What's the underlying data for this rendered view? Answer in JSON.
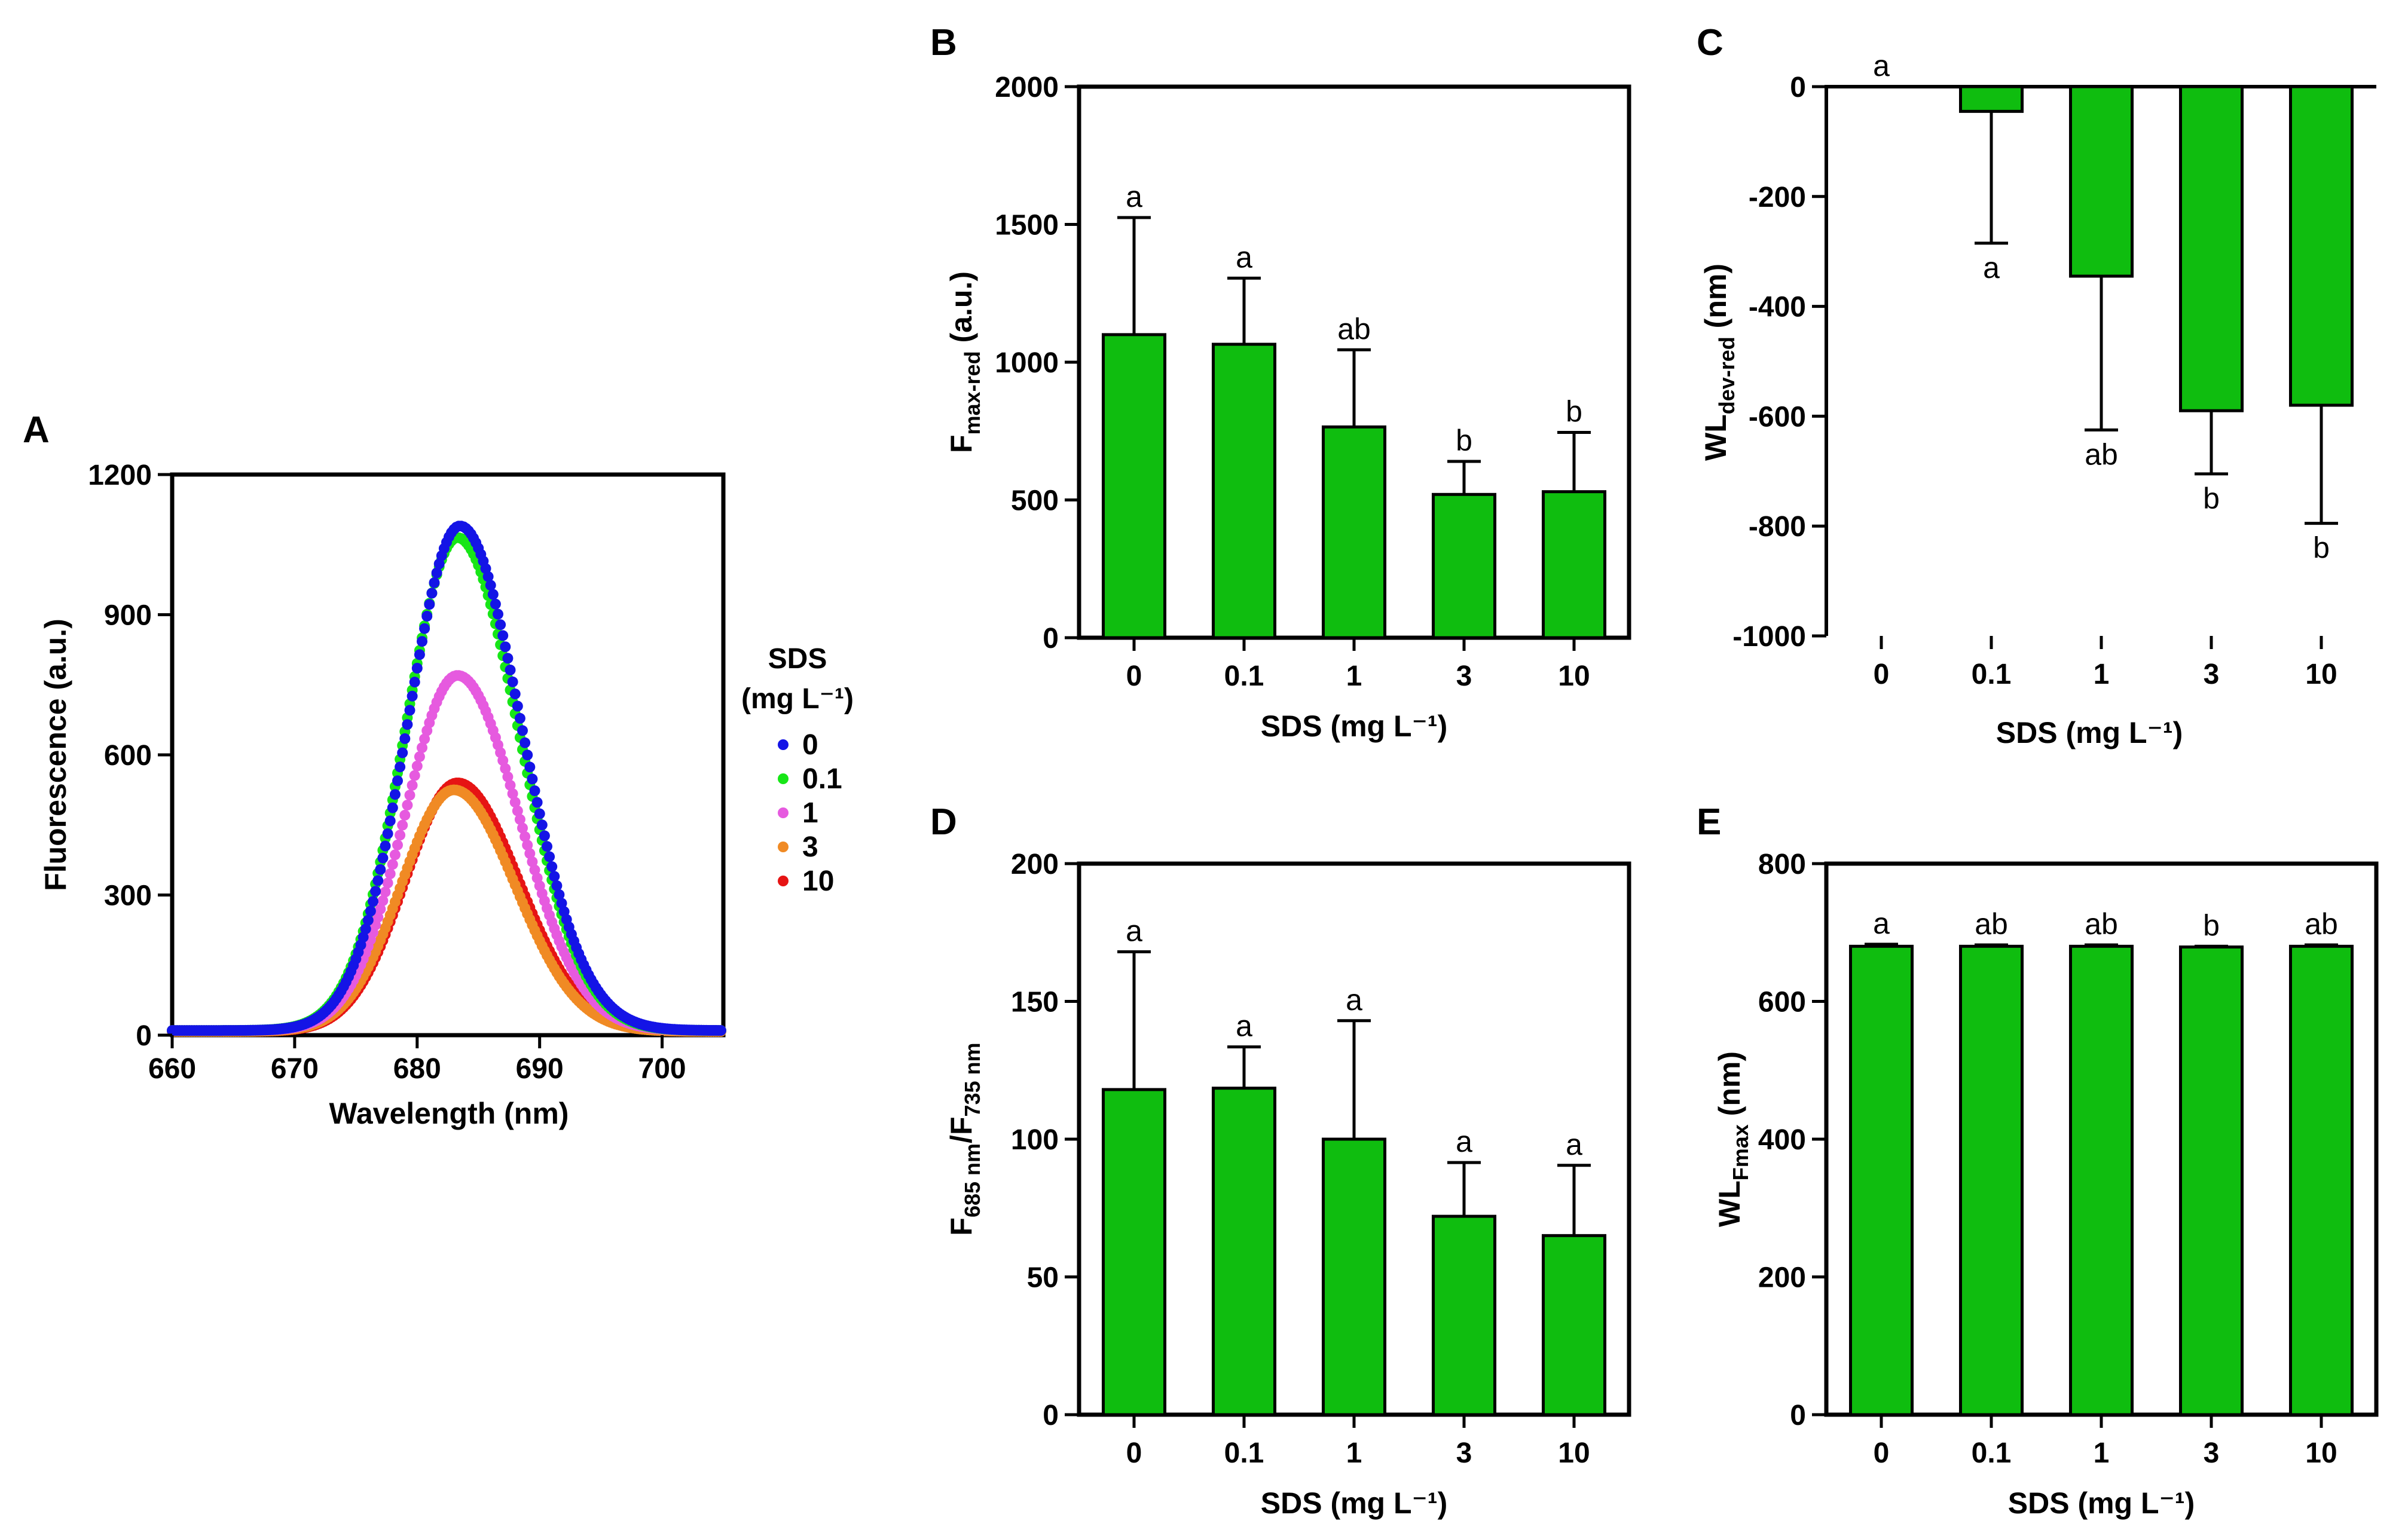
{
  "colors": {
    "bar": "#0fbd0f",
    "s0": "#1414e6",
    "s01": "#17e617",
    "s1": "#e65adf",
    "s3": "#f08a24",
    "s10": "#e61414"
  },
  "panelA": {
    "letter": "A",
    "ylabel": "Fluorescence (a.u.)",
    "xlabel": "Wavelength (nm)",
    "legend_title_1": "SDS",
    "legend_title_2": "(mg L⁻¹)",
    "chart_data": {
      "type": "scatter",
      "xlim": [
        660,
        705
      ],
      "ylim": [
        0,
        1200
      ],
      "xticks": [
        660,
        670,
        680,
        690,
        700
      ],
      "yticks": [
        0,
        300,
        600,
        900,
        1200
      ],
      "series": [
        {
          "name": "0",
          "peak_x": 683.5,
          "peak_y": 1090,
          "baseline": 10
        },
        {
          "name": "0.1",
          "peak_x": 683.3,
          "peak_y": 1065,
          "baseline": 10
        },
        {
          "name": "1",
          "peak_x": 683.3,
          "peak_y": 770,
          "baseline": 10
        },
        {
          "name": "3",
          "peak_x": 683.0,
          "peak_y": 525,
          "baseline": 8
        },
        {
          "name": "10",
          "peak_x": 683.3,
          "peak_y": 540,
          "baseline": 8
        }
      ]
    }
  },
  "panelB": {
    "letter": "B",
    "ylabel_main": "F",
    "ylabel_sub": "max-red",
    "ylabel_tail": " (a.u.)",
    "xlabel": "SDS (mg L⁻¹)",
    "chart_data": {
      "type": "bar",
      "categories": [
        "0",
        "0.1",
        "1",
        "3",
        "10"
      ],
      "values": [
        1100,
        1065,
        765,
        520,
        530
      ],
      "errors": [
        425,
        240,
        280,
        120,
        215
      ],
      "letters": [
        "a",
        "a",
        "ab",
        "b",
        "b"
      ],
      "ylim": [
        0,
        2000
      ],
      "yticks": [
        0,
        500,
        1000,
        1500,
        2000
      ]
    }
  },
  "panelC": {
    "letter": "C",
    "ylabel_main": "WL",
    "ylabel_sub": "dev-red",
    "ylabel_tail": " (nm)",
    "xlabel": "SDS (mg L⁻¹)",
    "chart_data": {
      "type": "bar",
      "categories": [
        "0",
        "0.1",
        "1",
        "3",
        "10"
      ],
      "values": [
        0,
        -45,
        -345,
        -590,
        -580
      ],
      "errors": [
        0,
        240,
        280,
        115,
        215
      ],
      "letters": [
        "a",
        "a",
        "ab",
        "b",
        "b"
      ],
      "ylim": [
        -1000,
        0
      ],
      "yticks": [
        -1000,
        -800,
        -600,
        -400,
        -200,
        0
      ]
    }
  },
  "panelD": {
    "letter": "D",
    "ylabel_a": "F",
    "ylabel_a_sub": "685 nm",
    "ylabel_mid": "/F",
    "ylabel_b_sub": "735 nm",
    "xlabel": "SDS (mg L⁻¹)",
    "chart_data": {
      "type": "bar",
      "categories": [
        "0",
        "0.1",
        "1",
        "3",
        "10"
      ],
      "values": [
        118,
        118.5,
        100,
        72,
        65
      ],
      "errors": [
        50,
        15,
        43,
        19.5,
        25.5
      ],
      "letters": [
        "a",
        "a",
        "a",
        "a",
        "a"
      ],
      "ylim": [
        0,
        200
      ],
      "yticks": [
        0,
        50,
        100,
        150,
        200
      ]
    }
  },
  "panelE": {
    "letter": "E",
    "ylabel_main": "WL",
    "ylabel_sub": "Fmax",
    "ylabel_tail": " (nm)",
    "xlabel": "SDS (mg L⁻¹)",
    "chart_data": {
      "type": "bar",
      "categories": [
        "0",
        "0.1",
        "1",
        "3",
        "10"
      ],
      "values": [
        680,
        680,
        680,
        679,
        680
      ],
      "errors": [
        3,
        2,
        2,
        1,
        2
      ],
      "letters": [
        "a",
        "ab",
        "ab",
        "b",
        "ab"
      ],
      "ylim": [
        0,
        800
      ],
      "yticks": [
        0,
        200,
        400,
        600,
        800
      ]
    }
  }
}
